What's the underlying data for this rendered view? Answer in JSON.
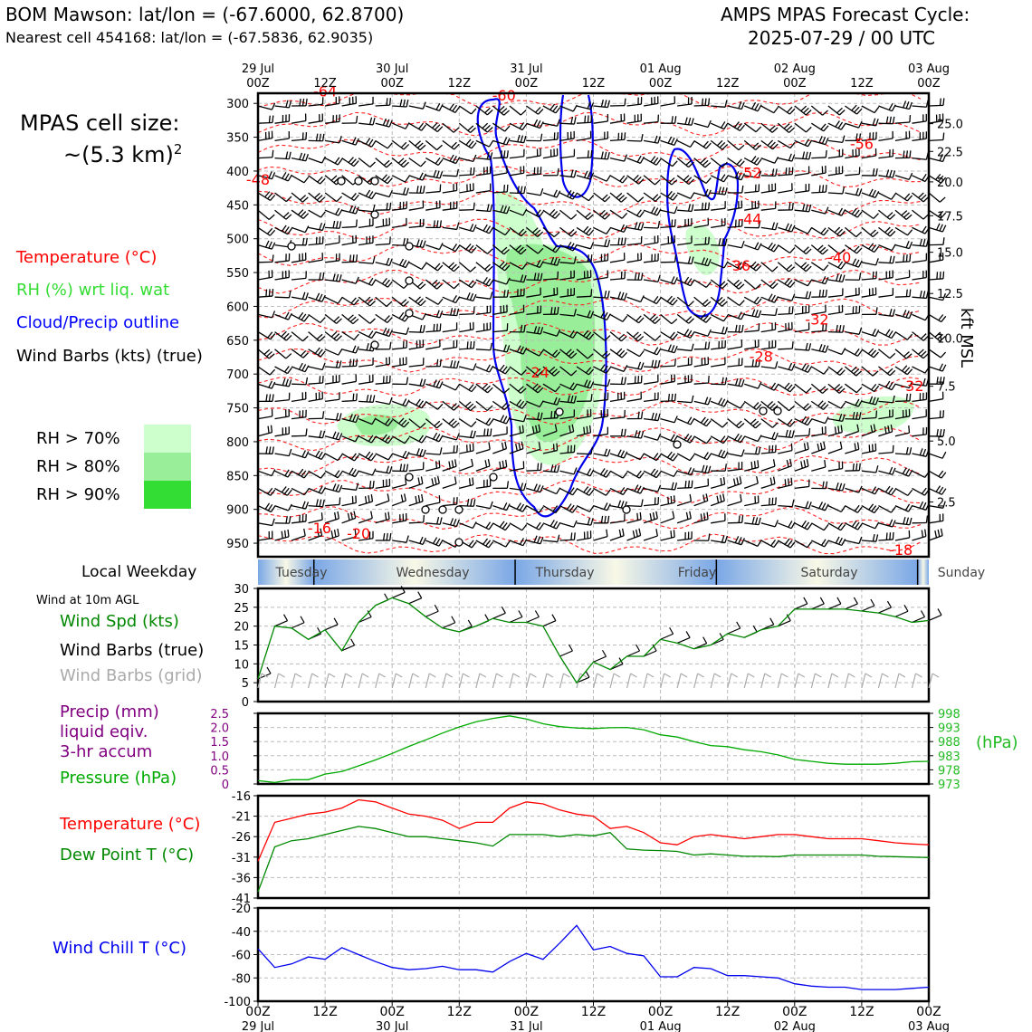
{
  "header": {
    "station_line": "BOM Mawson: lat/lon = (-67.6000, 62.8700)",
    "cell_line": "Nearest cell 454168: lat/lon = (-67.5836, 62.9035)",
    "model_title": "AMPS MPAS Forecast Cycle:",
    "cycle": "2025-07-29 / 00 UTC"
  },
  "sidebar": {
    "cell_size_label": "MPAS cell size:",
    "cell_size_value": "~(5.3 km)",
    "cell_size_exp": "2",
    "legend": [
      {
        "label": "Temperature (°C)",
        "color": "#ff0000"
      },
      {
        "label": "RH (%) wrt liq. wat",
        "color": "#33dd33"
      },
      {
        "label": "Cloud/Precip outline",
        "color": "#0000ff"
      },
      {
        "label": "Wind Barbs (kts) (true)",
        "color": "#000000"
      }
    ],
    "rh_legend": [
      {
        "label": "RH > 70%",
        "color": "#ccffcc"
      },
      {
        "label": "RH > 80%",
        "color": "#99ee99"
      },
      {
        "label": "RH > 90%",
        "color": "#33dd33"
      }
    ]
  },
  "weekday": {
    "label": "Local Weekday",
    "days": [
      "Tuesday",
      "Wednesday",
      "Thursday",
      "Friday",
      "Saturday",
      "Sunday"
    ]
  },
  "time_axis": {
    "top_dates": [
      [
        "29 Jul",
        "00Z"
      ],
      [
        "",
        "12Z"
      ],
      [
        "30 Jul",
        "00Z"
      ],
      [
        "",
        "12Z"
      ],
      [
        "31 Jul",
        "00Z"
      ],
      [
        "",
        "12Z"
      ],
      [
        "01 Aug",
        "00Z"
      ],
      [
        "",
        "12Z"
      ],
      [
        "02 Aug",
        "00Z"
      ],
      [
        "",
        "12Z"
      ],
      [
        "03 Aug",
        "00Z"
      ]
    ],
    "bottom_hours": [
      "00Z",
      "12Z",
      "00Z",
      "12Z",
      "00Z",
      "12Z",
      "00Z",
      "12Z",
      "00Z",
      "12Z",
      "00Z"
    ],
    "bottom_dates": [
      "29 Jul",
      "",
      "30 Jul",
      "",
      "31 Jul",
      "",
      "01 Aug",
      "",
      "02 Aug",
      "",
      "03 Aug"
    ]
  },
  "panels": {
    "wind": {
      "caption": "Wind at 10m AGL",
      "labels": [
        {
          "text": "Wind Spd (kts)",
          "color": "#008800"
        },
        {
          "text": "Wind Barbs (true)",
          "color": "#000000"
        },
        {
          "text": "Wind Barbs (grid)",
          "color": "#aaaaaa"
        }
      ]
    },
    "precip": {
      "labels": [
        {
          "text": "Precip (mm)",
          "color": "#800080"
        },
        {
          "text": "liquid eqiv.",
          "color": "#800080"
        },
        {
          "text": "3-hr accum",
          "color": "#800080"
        },
        {
          "text": "Pressure (hPa)",
          "color": "#00aa00"
        }
      ],
      "units_right": "(hPa)"
    },
    "temp": {
      "labels": [
        {
          "text": "Temperature (°C)",
          "color": "#ff0000"
        },
        {
          "text": "Dew Point T (°C)",
          "color": "#008800"
        }
      ]
    },
    "chill": {
      "labels": [
        {
          "text": "Wind Chill T (°C)",
          "color": "#0000ee"
        }
      ]
    },
    "upper": {
      "right_axis_label": "kft MSL"
    }
  },
  "chart_data": [
    {
      "type": "line",
      "panel": "upper",
      "xlabel": "",
      "ylabel": "",
      "y_left_ticks": [
        300,
        350,
        400,
        450,
        500,
        550,
        600,
        650,
        700,
        750,
        800,
        850,
        900,
        950
      ],
      "y_left_range": [
        285,
        970
      ],
      "y_right_ticks": [
        "25.0",
        "22.5",
        "20.0",
        "17.5",
        "15.0",
        "12.5",
        "10.0",
        "7.5",
        "5.0",
        "2.5"
      ],
      "y_right_pressures": [
        330,
        371,
        416,
        466,
        520,
        581,
        647,
        718,
        799,
        889
      ],
      "temp_labels": [
        {
          "text": "-64",
          "hour": 12,
          "p": 290
        },
        {
          "text": "-60",
          "hour": 44,
          "p": 296
        },
        {
          "text": "-56",
          "hour": 108,
          "p": 367
        },
        {
          "text": "-52",
          "hour": 88,
          "p": 410
        },
        {
          "text": "-48",
          "hour": 0,
          "p": 420
        },
        {
          "text": "-44",
          "hour": 88,
          "p": 478
        },
        {
          "text": "-40",
          "hour": 104,
          "p": 535
        },
        {
          "text": "-36",
          "hour": 86,
          "p": 547
        },
        {
          "text": "-32",
          "hour": 100,
          "p": 627
        },
        {
          "text": "-28",
          "hour": 90,
          "p": 682
        },
        {
          "text": "-24",
          "hour": 50,
          "p": 705
        },
        {
          "text": "-32",
          "hour": 117,
          "p": 725
        },
        {
          "text": "-16",
          "hour": 11,
          "p": 935
        },
        {
          "text": "-20",
          "hour": 18,
          "p": 943
        },
        {
          "text": "-18",
          "hour": 115,
          "p": 967
        }
      ],
      "grid": true
    },
    {
      "type": "line",
      "panel": "wind",
      "x_hours": [
        0,
        3,
        6,
        9,
        12,
        15,
        18,
        21,
        24,
        27,
        30,
        33,
        36,
        39,
        42,
        45,
        48,
        51,
        54,
        57,
        60,
        63,
        66,
        69,
        72,
        75,
        78,
        81,
        84,
        87,
        90,
        93,
        96,
        99,
        102,
        105,
        108,
        111,
        114,
        117,
        120
      ],
      "series": [
        {
          "name": "Wind Spd (kts)",
          "color": "#008800",
          "values": [
            6,
            20,
            19.5,
            16.5,
            19,
            13.5,
            21,
            25.5,
            27.5,
            26,
            22.5,
            19.5,
            18.5,
            20,
            22,
            21,
            21,
            20,
            12,
            5,
            10.5,
            8.5,
            12,
            12,
            16.5,
            15.5,
            14,
            15,
            18,
            17,
            19,
            20,
            24.5,
            24.5,
            24.5,
            24.5,
            24,
            23.5,
            22.5,
            21,
            21.5
          ]
        }
      ],
      "yticks": [
        0,
        5,
        10,
        15,
        20,
        25,
        30
      ],
      "ylim": [
        0,
        30
      ],
      "grid": true
    },
    {
      "type": "line",
      "panel": "precip",
      "x_hours": [
        0,
        3,
        6,
        9,
        12,
        15,
        18,
        21,
        24,
        27,
        30,
        33,
        36,
        39,
        42,
        45,
        48,
        51,
        54,
        57,
        60,
        63,
        66,
        69,
        72,
        75,
        78,
        81,
        84,
        87,
        90,
        93,
        96,
        99,
        102,
        105,
        108,
        111,
        114,
        117,
        120
      ],
      "series": [
        {
          "name": "Pressure (hPa)",
          "color": "#00aa00",
          "values": [
            974.2,
            973.5,
            974.5,
            974.5,
            976.5,
            977.4,
            979.4,
            981.5,
            983.8,
            986.3,
            988.6,
            991,
            993.2,
            995,
            996.2,
            997.1,
            996,
            994.3,
            993.3,
            992.8,
            992.6,
            992.9,
            993,
            992.2,
            990.4,
            989.6,
            988,
            986.6,
            986.2,
            985.1,
            984.4,
            983.3,
            981.7,
            981,
            980.3,
            980,
            980,
            980,
            980.3,
            980.9,
            981
          ]
        }
      ],
      "yticks_left": [
        "0",
        "0.5",
        "1.0",
        "1.5",
        "2.0",
        "2.5"
      ],
      "yticks_right": [
        "973",
        "978",
        "983",
        "988",
        "993",
        "998"
      ],
      "grid": true
    },
    {
      "type": "line",
      "panel": "temp",
      "x_hours": [
        0,
        3,
        6,
        9,
        12,
        15,
        18,
        21,
        24,
        27,
        30,
        33,
        36,
        39,
        42,
        45,
        48,
        51,
        54,
        57,
        60,
        63,
        66,
        69,
        72,
        75,
        78,
        81,
        84,
        87,
        90,
        93,
        96,
        99,
        102,
        105,
        108,
        111,
        114,
        117,
        120
      ],
      "series": [
        {
          "name": "Temperature (°C)",
          "color": "#ff0000",
          "values": [
            -32,
            -22.5,
            -21.5,
            -20.5,
            -20,
            -19,
            -17,
            -17.5,
            -19,
            -20.5,
            -21,
            -22,
            -24,
            -22.5,
            -22.5,
            -19,
            -17.5,
            -18,
            -19.5,
            -20.5,
            -21,
            -24,
            -23.5,
            -25,
            -27.5,
            -28,
            -26,
            -25.5,
            -26,
            -26.5,
            -26,
            -25.5,
            -25.5,
            -26,
            -26.5,
            -26.5,
            -26.5,
            -27,
            -27.5,
            -27.8,
            -28
          ]
        },
        {
          "name": "Dew Point T (°C)",
          "color": "#008800",
          "values": [
            -39.5,
            -28.5,
            -27,
            -26.5,
            -25.5,
            -24.5,
            -23.5,
            -24,
            -25,
            -26,
            -26,
            -26.5,
            -27,
            -27.5,
            -28.3,
            -25.5,
            -25.5,
            -25.5,
            -26,
            -25.5,
            -25.8,
            -25,
            -29,
            -29.3,
            -29.4,
            -29.6,
            -30.5,
            -30.2,
            -30.5,
            -30.8,
            -30.8,
            -30.9,
            -30.5,
            -30.5,
            -30.5,
            -30.5,
            -30.5,
            -30.8,
            -30.9,
            -31,
            -31.1
          ]
        }
      ],
      "yticks": [
        -41,
        -36,
        -31,
        -26,
        -21,
        -16
      ],
      "ylim": [
        -41,
        -16
      ],
      "grid": true
    },
    {
      "type": "line",
      "panel": "chill",
      "x_hours": [
        0,
        3,
        6,
        9,
        12,
        15,
        18,
        21,
        24,
        27,
        30,
        33,
        36,
        39,
        42,
        45,
        48,
        51,
        54,
        57,
        60,
        63,
        66,
        69,
        72,
        75,
        78,
        81,
        84,
        87,
        90,
        93,
        96,
        99,
        102,
        105,
        108,
        111,
        114,
        117,
        120
      ],
      "series": [
        {
          "name": "Wind Chill T (°C)",
          "color": "#0000ee",
          "values": [
            -55,
            -71,
            -68,
            -62,
            -64,
            -54,
            -60,
            -66,
            -71,
            -73,
            -72,
            -70,
            -73,
            -73,
            -75,
            -66,
            -59,
            -64,
            -50,
            -35,
            -56,
            -53,
            -59,
            -61,
            -79,
            -79,
            -71,
            -72,
            -78,
            -78,
            -79,
            -80,
            -85,
            -87,
            -88,
            -88,
            -90,
            -90,
            -90,
            -89,
            -88
          ]
        }
      ],
      "yticks": [
        -100,
        -80,
        -60,
        -40,
        -20
      ],
      "ylim": [
        -100,
        -20
      ],
      "grid": true
    }
  ]
}
